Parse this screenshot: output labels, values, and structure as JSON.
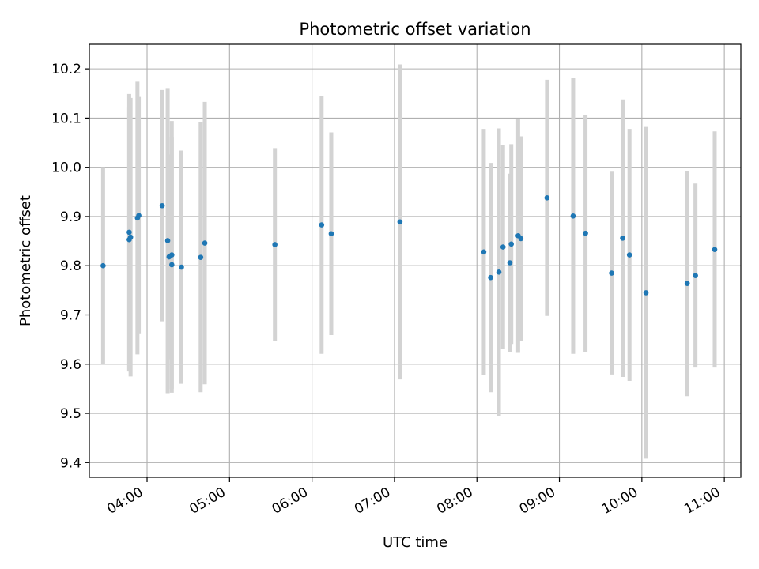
{
  "chart_data": {
    "type": "scatter",
    "title": "Photometric offset variation",
    "xlabel": "UTC time",
    "ylabel": "Photometric offset",
    "x_ticks": [
      "04:00",
      "05:00",
      "06:00",
      "07:00",
      "08:00",
      "09:00",
      "10:00",
      "11:00"
    ],
    "y_ticks": [
      "9.4",
      "9.5",
      "9.6",
      "9.7",
      "9.8",
      "9.9",
      "10.0",
      "10.1",
      "10.2"
    ],
    "xlim": [
      "03:38",
      "11:12"
    ],
    "ylim": [
      9.37,
      10.25
    ],
    "grid": true,
    "legend": "none",
    "colors": {
      "points": "#1f77b4",
      "errorbars": "#d3d3d3",
      "grid": "#b0b0b0"
    },
    "points": [
      {
        "x": "03:28",
        "y": 9.8,
        "yerr": 0.2
      },
      {
        "x": "03:47",
        "y": 9.868,
        "yerr": 0.281
      },
      {
        "x": "03:47",
        "y": 9.853,
        "yerr": 0.268
      },
      {
        "x": "03:48",
        "y": 9.858,
        "yerr": 0.283
      },
      {
        "x": "03:53",
        "y": 9.897,
        "yerr": 0.277
      },
      {
        "x": "03:54",
        "y": 9.902,
        "yerr": 0.241
      },
      {
        "x": "04:11",
        "y": 9.922,
        "yerr": 0.235
      },
      {
        "x": "04:15",
        "y": 9.851,
        "yerr": 0.31
      },
      {
        "x": "04:16",
        "y": 9.818,
        "yerr": 0.208
      },
      {
        "x": "04:18",
        "y": 9.822,
        "yerr": 0.272
      },
      {
        "x": "04:18",
        "y": 9.802,
        "yerr": 0.26
      },
      {
        "x": "04:25",
        "y": 9.797,
        "yerr": 0.237
      },
      {
        "x": "04:39",
        "y": 9.817,
        "yerr": 0.274
      },
      {
        "x": "04:42",
        "y": 9.846,
        "yerr": 0.287
      },
      {
        "x": "05:33",
        "y": 9.843,
        "yerr": 0.196
      },
      {
        "x": "06:07",
        "y": 9.883,
        "yerr": 0.262
      },
      {
        "x": "06:14",
        "y": 9.865,
        "yerr": 0.206
      },
      {
        "x": "07:04",
        "y": 9.889,
        "yerr": 0.32
      },
      {
        "x": "08:05",
        "y": 9.828,
        "yerr": 0.25
      },
      {
        "x": "08:10",
        "y": 9.776,
        "yerr": 0.233
      },
      {
        "x": "08:16",
        "y": 9.787,
        "yerr": 0.292
      },
      {
        "x": "08:19",
        "y": 9.838,
        "yerr": 0.207
      },
      {
        "x": "08:24",
        "y": 9.806,
        "yerr": 0.181
      },
      {
        "x": "08:25",
        "y": 9.844,
        "yerr": 0.203
      },
      {
        "x": "08:30",
        "y": 9.861,
        "yerr": 0.238
      },
      {
        "x": "08:32",
        "y": 9.855,
        "yerr": 0.208
      },
      {
        "x": "08:51",
        "y": 9.938,
        "yerr": 0.24
      },
      {
        "x": "09:10",
        "y": 9.901,
        "yerr": 0.28
      },
      {
        "x": "09:19",
        "y": 9.866,
        "yerr": 0.241
      },
      {
        "x": "09:38",
        "y": 9.785,
        "yerr": 0.206
      },
      {
        "x": "09:46",
        "y": 9.856,
        "yerr": 0.282
      },
      {
        "x": "09:51",
        "y": 9.822,
        "yerr": 0.256
      },
      {
        "x": "10:03",
        "y": 9.745,
        "yerr": 0.337
      },
      {
        "x": "10:33",
        "y": 9.764,
        "yerr": 0.229
      },
      {
        "x": "10:39",
        "y": 9.78,
        "yerr": 0.187
      },
      {
        "x": "10:53",
        "y": 9.833,
        "yerr": 0.24
      }
    ]
  }
}
